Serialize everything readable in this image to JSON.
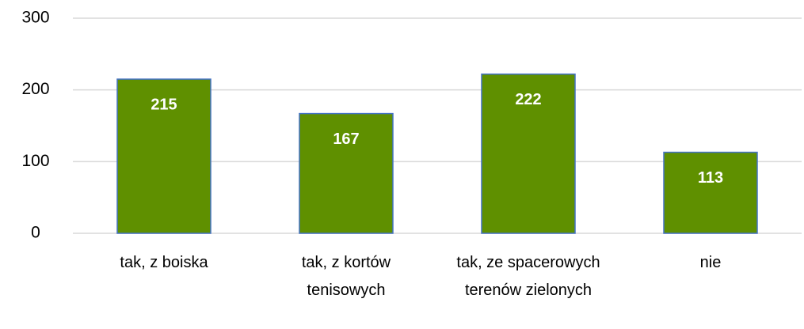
{
  "chart_data": {
    "type": "bar",
    "categories": [
      "tak, z boiska",
      "tak, z kortów tenisowych",
      "tak, ze spacerowych terenów zielonych",
      "nie"
    ],
    "values": [
      215,
      167,
      222,
      113
    ],
    "color": "#5f9000",
    "edge_color": "#4472c4",
    "ylim": [
      0,
      300
    ],
    "yticks": [
      0,
      100,
      200,
      300
    ],
    "grid": true
  }
}
